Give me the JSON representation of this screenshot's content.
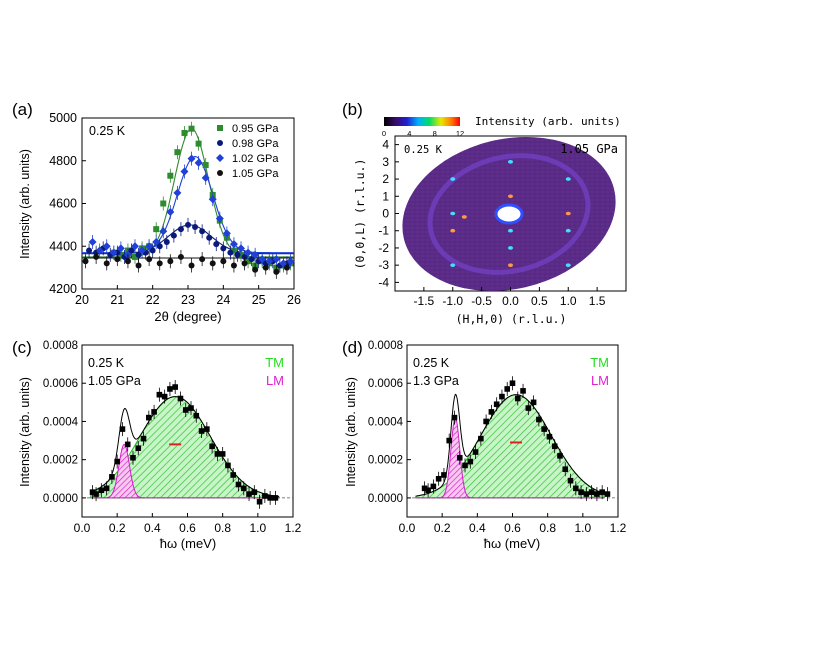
{
  "chart_data": [
    {
      "panel_label": "(a)",
      "type": "scatter",
      "annotation": "0.25 K",
      "xlabel": "2θ (degree)",
      "ylabel": "Intensity (arb. units)",
      "xlim": [
        20,
        26
      ],
      "ylim": [
        4200,
        5000
      ],
      "xticks": [
        20,
        21,
        22,
        23,
        24,
        25,
        26
      ],
      "yticks": [
        4200,
        4400,
        4600,
        4800,
        5000
      ],
      "legend_position": "top-right",
      "series": [
        {
          "name": "0.95 GPa",
          "color": "#2e8b2e",
          "marker": "square",
          "x": [
            20.9,
            21.1,
            21.3,
            21.5,
            21.7,
            21.9,
            22.1,
            22.3,
            22.5,
            22.7,
            22.9,
            23.1,
            23.3,
            23.5,
            23.7,
            23.9,
            24.1,
            24.3,
            24.5,
            24.7,
            24.9,
            25.1,
            25.3,
            25.5,
            25.7,
            25.9
          ],
          "y": [
            4370,
            4360,
            4380,
            4350,
            4390,
            4400,
            4480,
            4600,
            4730,
            4840,
            4930,
            4950,
            4880,
            4780,
            4640,
            4520,
            4440,
            4380,
            4360,
            4330,
            4310,
            4330,
            4320,
            4300,
            4310,
            4320
          ],
          "fit_peak": 4950,
          "fit_center": 23.1,
          "fit_sigma": 0.48,
          "fit_base": 4350
        },
        {
          "name": "0.98 GPa",
          "color": "#0a1a7a",
          "marker": "circle",
          "x": [
            20.2,
            20.4,
            20.6,
            20.8,
            21.0,
            21.2,
            21.4,
            21.6,
            21.8,
            22.0,
            22.2,
            22.4,
            22.6,
            22.8,
            23.0,
            23.2,
            23.4,
            23.6,
            23.8,
            24.0,
            24.2,
            24.4,
            24.6,
            24.8,
            25.0,
            25.2,
            25.4,
            25.6,
            25.8
          ],
          "y": [
            4380,
            4370,
            4390,
            4360,
            4370,
            4350,
            4380,
            4360,
            4370,
            4380,
            4400,
            4420,
            4450,
            4480,
            4500,
            4490,
            4470,
            4440,
            4410,
            4390,
            4370,
            4360,
            4350,
            4340,
            4330,
            4320,
            4330,
            4310,
            4320
          ],
          "fit_peak": 4500,
          "fit_center": 23.05,
          "fit_sigma": 0.6,
          "fit_base": 4365
        },
        {
          "name": "1.02 GPa",
          "color": "#2040d8",
          "marker": "diamond",
          "x": [
            20.3,
            20.5,
            20.7,
            20.9,
            21.1,
            21.3,
            21.5,
            21.7,
            21.9,
            22.1,
            22.3,
            22.5,
            22.7,
            22.9,
            23.1,
            23.3,
            23.5,
            23.7,
            23.9,
            24.1,
            24.3,
            24.5,
            24.7,
            24.9,
            25.1,
            25.3,
            25.5,
            25.7,
            25.9
          ],
          "y": [
            4420,
            4380,
            4400,
            4370,
            4390,
            4360,
            4400,
            4380,
            4400,
            4420,
            4470,
            4560,
            4650,
            4750,
            4810,
            4790,
            4720,
            4620,
            4530,
            4460,
            4410,
            4390,
            4370,
            4360,
            4340,
            4330,
            4340,
            4320,
            4330
          ],
          "fit_peak": 4820,
          "fit_center": 23.2,
          "fit_sigma": 0.5,
          "fit_base": 4370
        },
        {
          "name": "1.05 GPa",
          "color": "#111111",
          "marker": "circle",
          "x": [
            20.1,
            20.4,
            20.7,
            21.0,
            21.3,
            21.6,
            21.9,
            22.2,
            22.5,
            22.8,
            23.1,
            23.4,
            23.7,
            24.0,
            24.3,
            24.6,
            24.9,
            25.2,
            25.5,
            25.8
          ],
          "y": [
            4330,
            4350,
            4320,
            4340,
            4330,
            4310,
            4340,
            4320,
            4330,
            4350,
            4310,
            4340,
            4320,
            4330,
            4310,
            4320,
            4290,
            4300,
            4280,
            4300
          ],
          "fit_peak": 4345,
          "fit_center": 23.0,
          "fit_sigma": 5.0,
          "fit_base": 4345
        }
      ]
    },
    {
      "panel_label": "(b)",
      "type": "heatmap",
      "annotation_left": "0.25 K",
      "annotation_right": "1.05 GPa",
      "colorbar_label": "Intensity (arb. units)",
      "colorbar_ticks": [
        0,
        4,
        8,
        12
      ],
      "xlabel": "(H,H,0) (r.l.u.)",
      "ylabel": "(0,0,L) (r.l.u.)",
      "xlim": [
        -2,
        2
      ],
      "ylim": [
        -4.5,
        4.5
      ],
      "xticks": [
        -1.5,
        -1.0,
        -0.5,
        0.0,
        0.5,
        1.0,
        1.5
      ],
      "xtick_labels": [
        "-1.5",
        "-1.0",
        "-0.5",
        "0.0",
        "0.5",
        "1.0",
        "1.5"
      ],
      "yticks": [
        -4,
        -3,
        -2,
        -1,
        0,
        1,
        2,
        3,
        4
      ],
      "spots": [
        {
          "h": 0.0,
          "l": 3.0
        },
        {
          "h": 0.0,
          "l": 1.0
        },
        {
          "h": 0.0,
          "l": -1.0
        },
        {
          "h": 0.0,
          "l": -2.0
        },
        {
          "h": 0.0,
          "l": -3.0
        },
        {
          "h": -1.0,
          "l": 2.0
        },
        {
          "h": -1.0,
          "l": 0.0
        },
        {
          "h": -1.0,
          "l": -1.0
        },
        {
          "h": -1.0,
          "l": -3.0
        },
        {
          "h": 1.0,
          "l": 2.0
        },
        {
          "h": 1.0,
          "l": 0.0
        },
        {
          "h": 1.0,
          "l": -1.0
        },
        {
          "h": 1.0,
          "l": -3.0
        },
        {
          "h": -0.8,
          "l": -0.2
        }
      ]
    },
    {
      "panel_label": "(c)",
      "type": "scatter",
      "annotation": "0.25 K",
      "annotation2": "1.05 GPa",
      "legend_tm": "TM",
      "legend_lm": "LM",
      "xlabel": "ħω (meV)",
      "ylabel": "Intensity (arb. units)",
      "xlim": [
        0.0,
        1.2
      ],
      "ylim": [
        -0.0001,
        0.0008
      ],
      "xticks": [
        0.0,
        0.2,
        0.4,
        0.6,
        0.8,
        1.0,
        1.2
      ],
      "xtick_labels": [
        "0.0",
        "0.2",
        "0.4",
        "0.6",
        "0.8",
        "1.0",
        "1.2"
      ],
      "yticks": [
        0.0,
        0.0002,
        0.0004,
        0.0006,
        0.0008
      ],
      "ytick_labels": [
        "0.0000",
        "0.0002",
        "0.0004",
        "0.0006",
        "0.0008"
      ],
      "tm": {
        "center": 0.53,
        "sigma": 0.2,
        "amp": 0.00053
      },
      "lm": {
        "center": 0.24,
        "sigma": 0.03,
        "amp": 0.00028
      },
      "series": [
        {
          "name": "data",
          "color": "#000000",
          "x": [
            0.06,
            0.08,
            0.11,
            0.14,
            0.17,
            0.2,
            0.23,
            0.26,
            0.29,
            0.32,
            0.35,
            0.38,
            0.41,
            0.44,
            0.47,
            0.5,
            0.53,
            0.56,
            0.59,
            0.62,
            0.65,
            0.68,
            0.71,
            0.74,
            0.77,
            0.8,
            0.83,
            0.86,
            0.89,
            0.92,
            0.95,
            0.98,
            1.01,
            1.04,
            1.07,
            1.1
          ],
          "y": [
            3e-05,
            2e-05,
            4e-05,
            5e-05,
            0.00011,
            0.00019,
            0.00036,
            0.00028,
            0.00021,
            0.00026,
            0.00031,
            0.00042,
            0.00045,
            0.00054,
            0.00053,
            0.00057,
            0.00058,
            0.00052,
            0.00046,
            0.00047,
            0.00043,
            0.00035,
            0.00036,
            0.00027,
            0.00023,
            0.00023,
            0.00017,
            0.00012,
            7e-05,
            5e-05,
            2e-05,
            3e-05,
            -2e-05,
            1e-05,
            0.0,
            0.0
          ]
        }
      ],
      "bar_center": 0.53,
      "bar_y": 0.00028
    },
    {
      "panel_label": "(d)",
      "type": "scatter",
      "annotation": "0.25 K",
      "annotation2": "1.3 GPa",
      "legend_tm": "TM",
      "legend_lm": "LM",
      "xlabel": "ħω (meV)",
      "ylabel": "Intensity (arb. units)",
      "xlim": [
        0.0,
        1.2
      ],
      "ylim": [
        -0.0001,
        0.0008
      ],
      "xticks": [
        0.0,
        0.2,
        0.4,
        0.6,
        0.8,
        1.0,
        1.2
      ],
      "xtick_labels": [
        "0.0",
        "0.2",
        "0.4",
        "0.6",
        "0.8",
        "1.0",
        "1.2"
      ],
      "yticks": [
        0.0,
        0.0002,
        0.0004,
        0.0006,
        0.0008
      ],
      "ytick_labels": [
        "0.0000",
        "0.0002",
        "0.0004",
        "0.0006",
        "0.0008"
      ],
      "tm": {
        "center": 0.62,
        "sigma": 0.2,
        "amp": 0.00054
      },
      "lm": {
        "center": 0.275,
        "sigma": 0.025,
        "amp": 0.00042
      },
      "series": [
        {
          "name": "data",
          "color": "#000000",
          "x": [
            0.1,
            0.12,
            0.15,
            0.18,
            0.21,
            0.24,
            0.27,
            0.3,
            0.33,
            0.36,
            0.39,
            0.42,
            0.45,
            0.48,
            0.51,
            0.54,
            0.57,
            0.6,
            0.63,
            0.66,
            0.69,
            0.72,
            0.75,
            0.78,
            0.81,
            0.84,
            0.87,
            0.9,
            0.93,
            0.96,
            0.99,
            1.02,
            1.05,
            1.08,
            1.11,
            1.14
          ],
          "y": [
            5e-05,
            4e-05,
            6e-05,
            0.0001,
            0.00012,
            0.0003,
            0.00042,
            0.00021,
            0.00017,
            0.00019,
            0.00024,
            0.00031,
            0.0004,
            0.00045,
            0.00049,
            0.00053,
            0.00057,
            0.0006,
            0.00052,
            0.00056,
            0.00047,
            0.0005,
            0.00041,
            0.00036,
            0.00032,
            0.00027,
            0.00022,
            0.00015,
            9e-05,
            5e-05,
            3e-05,
            2e-05,
            3e-05,
            2e-05,
            3e-05,
            2e-05
          ]
        }
      ],
      "bar_center": 0.62,
      "bar_y": 0.00029
    }
  ]
}
